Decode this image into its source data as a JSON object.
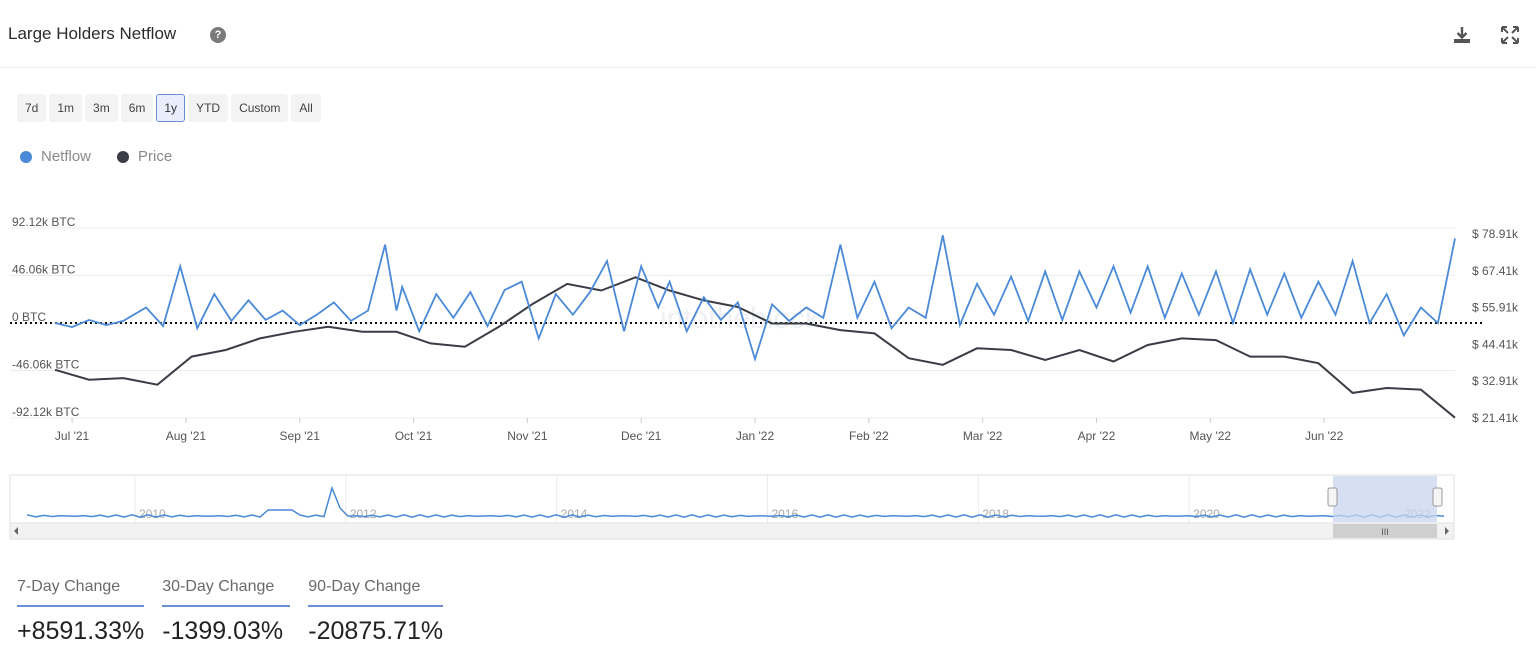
{
  "header": {
    "title": "Large Holders Netflow",
    "help_icon": "question-circle-icon",
    "download_icon": "download-icon",
    "fullscreen_icon": "fullscreen-icon"
  },
  "range_buttons": [
    {
      "label": "7d",
      "active": false
    },
    {
      "label": "1m",
      "active": false
    },
    {
      "label": "3m",
      "active": false
    },
    {
      "label": "6m",
      "active": false
    },
    {
      "label": "1y",
      "active": true
    },
    {
      "label": "YTD",
      "active": false
    },
    {
      "label": "Custom",
      "active": false
    },
    {
      "label": "All",
      "active": false
    }
  ],
  "legend": [
    {
      "name": "Netflow",
      "color": "#4a8ad8"
    },
    {
      "name": "Price",
      "color": "#3a3d45"
    }
  ],
  "watermark": "intotheblock",
  "chart_data": {
    "type": "line",
    "x_ticks": [
      "Jul '21",
      "Aug '21",
      "Sep '21",
      "Oct '21",
      "Nov '21",
      "Dec '21",
      "Jan '22",
      "Feb '22",
      "Mar '22",
      "Apr '22",
      "May '22",
      "Jun '22"
    ],
    "y_left_ticks": [
      "92.12k BTC",
      "46.06k BTC",
      "0 BTC",
      "-46.06k BTC",
      "-92.12k BTC"
    ],
    "y_right_ticks": [
      "$ 78.91k",
      "$ 67.41k",
      "$ 55.91k",
      "$ 44.41k",
      "$ 32.91k",
      "$ 21.41k"
    ],
    "ylim_left": [
      -92120,
      92120
    ],
    "ylim_right": [
      21410,
      78910
    ],
    "x_range": [
      0,
      12.3
    ],
    "series": [
      {
        "name": "Netflow",
        "axis": "left",
        "color": "#4a8ad8",
        "x": [
          0,
          0.15,
          0.3,
          0.45,
          0.6,
          0.8,
          0.95,
          1.1,
          1.25,
          1.4,
          1.55,
          1.7,
          1.85,
          2.0,
          2.15,
          2.3,
          2.45,
          2.6,
          2.75,
          2.9,
          3.0,
          3.05,
          3.2,
          3.35,
          3.5,
          3.65,
          3.8,
          3.95,
          4.1,
          4.25,
          4.4,
          4.55,
          4.7,
          4.85,
          5.0,
          5.15,
          5.3,
          5.4,
          5.55,
          5.7,
          5.85,
          6.0,
          6.15,
          6.3,
          6.45,
          6.6,
          6.75,
          6.9,
          7.05,
          7.2,
          7.35,
          7.5,
          7.65,
          7.8,
          7.95,
          8.1,
          8.25,
          8.4,
          8.55,
          8.7,
          8.85,
          9.0,
          9.15,
          9.3,
          9.45,
          9.6,
          9.75,
          9.9,
          10.05,
          10.2,
          10.35,
          10.5,
          10.65,
          10.8,
          10.95,
          11.1,
          11.25,
          11.4,
          11.55,
          11.7,
          11.85,
          12.0,
          12.15,
          12.3
        ],
        "y": [
          0,
          -4000,
          3000,
          -2000,
          2000,
          15000,
          -3000,
          55000,
          -5000,
          28000,
          2000,
          22000,
          3000,
          12000,
          -2000,
          8000,
          20000,
          2000,
          12000,
          76000,
          12000,
          35000,
          -8000,
          28000,
          5000,
          30000,
          -3000,
          32000,
          40000,
          -15000,
          28000,
          8000,
          30000,
          60000,
          -8000,
          55000,
          15000,
          40000,
          -8000,
          25000,
          3000,
          20000,
          -35000,
          18000,
          2000,
          15000,
          5000,
          76000,
          5000,
          40000,
          -5000,
          15000,
          5000,
          85000,
          -2000,
          38000,
          8000,
          45000,
          2000,
          50000,
          3000,
          50000,
          15000,
          55000,
          10000,
          55000,
          5000,
          48000,
          8000,
          50000,
          0,
          52000,
          8000,
          48000,
          5000,
          40000,
          8000,
          60000,
          0,
          28000,
          -12000,
          15000,
          0,
          82000
        ]
      },
      {
        "name": "Price",
        "axis": "right",
        "color": "#3a3d45",
        "x": [
          0,
          0.3,
          0.6,
          0.9,
          1.2,
          1.5,
          1.8,
          2.1,
          2.4,
          2.7,
          3.0,
          3.3,
          3.6,
          3.9,
          4.2,
          4.5,
          4.8,
          5.1,
          5.4,
          5.7,
          6.0,
          6.3,
          6.6,
          6.9,
          7.2,
          7.5,
          7.8,
          8.1,
          8.4,
          8.7,
          9.0,
          9.3,
          9.6,
          9.9,
          10.2,
          10.5,
          10.8,
          11.1,
          11.4,
          11.7,
          12.0,
          12.3
        ],
        "y": [
          36000,
          33000,
          33500,
          31500,
          40000,
          42000,
          45500,
          47500,
          49000,
          47500,
          47500,
          44000,
          43000,
          49000,
          56000,
          62000,
          60000,
          64000,
          60000,
          57000,
          55000,
          50000,
          50000,
          48000,
          47000,
          39500,
          37500,
          42500,
          42000,
          39000,
          42000,
          38500,
          43500,
          45500,
          45000,
          40000,
          40000,
          38000,
          29000,
          30500,
          30000,
          21500
        ]
      }
    ]
  },
  "navigator": {
    "labels": [
      "2010",
      "2012",
      "2014",
      "2016",
      "2018",
      "2020",
      "2022"
    ],
    "scroll_grip": "III"
  },
  "stats": [
    {
      "label": "7-Day Change",
      "value": "+8591.33%"
    },
    {
      "label": "30-Day Change",
      "value": "-1399.03%"
    },
    {
      "label": "90-Day Change",
      "value": "-20875.71%"
    }
  ]
}
